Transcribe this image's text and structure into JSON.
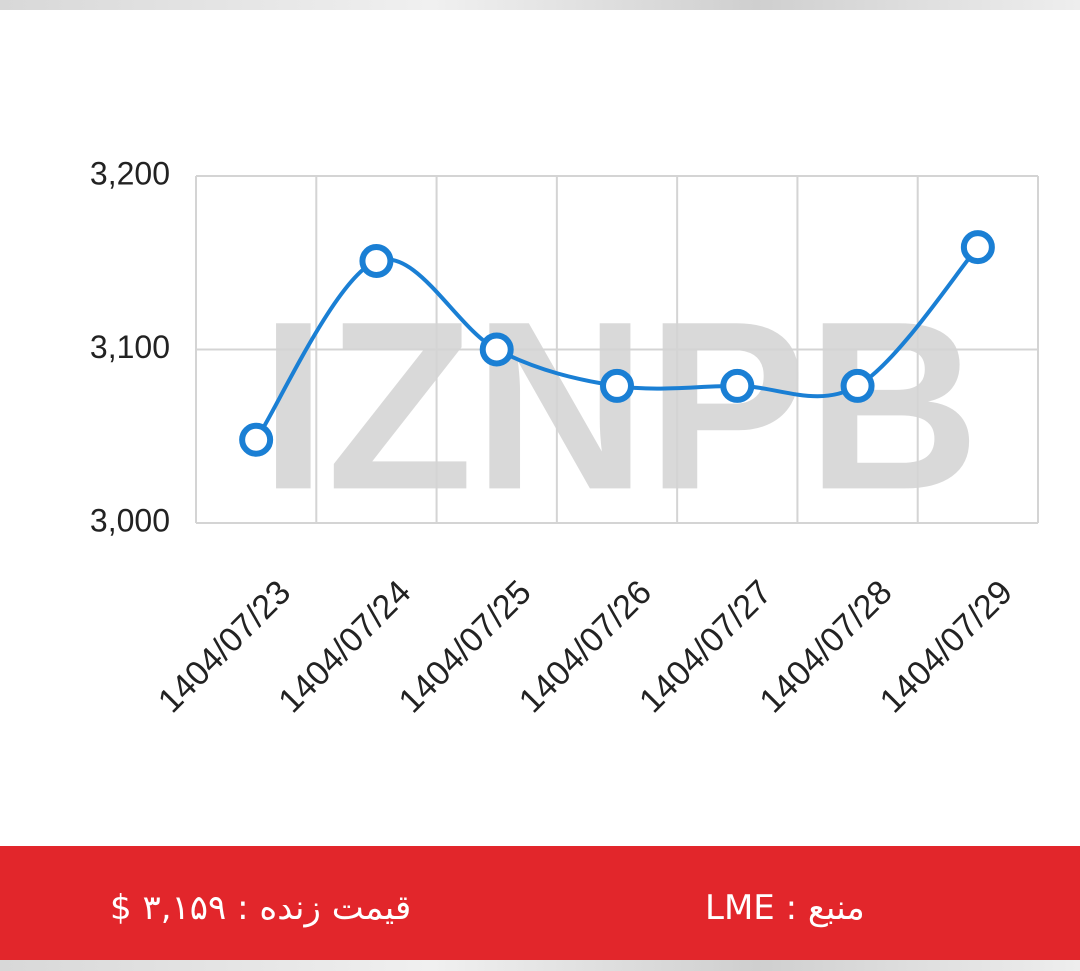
{
  "chart_data": {
    "type": "line",
    "watermark": "IZNPB",
    "categories": [
      "1404/07/23",
      "1404/07/24",
      "1404/07/25",
      "1404/07/26",
      "1404/07/27",
      "1404/07/28",
      "1404/07/29"
    ],
    "values": [
      3048,
      3151,
      3100,
      3079,
      3079,
      3079,
      3159
    ],
    "color": "#1a7fd4",
    "ylim": [
      3000,
      3200
    ],
    "yticks": [
      {
        "value": 3000,
        "label": "3,000"
      },
      {
        "value": 3100,
        "label": "3,100"
      },
      {
        "value": 3200,
        "label": "3,200"
      }
    ],
    "grid": true
  },
  "footer": {
    "price": "قیمت زنده : ۳,۱۵۹ $",
    "source": "منبع : LME"
  }
}
